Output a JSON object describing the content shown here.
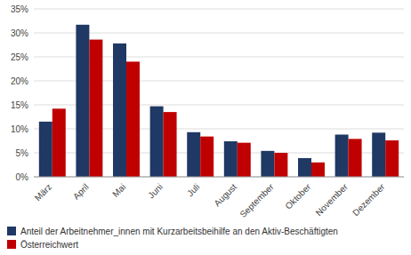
{
  "chart_data": {
    "type": "bar",
    "categories": [
      "März",
      "April",
      "Mai",
      "Juni",
      "Juli",
      "August",
      "September",
      "Oktober",
      "November",
      "Dezember"
    ],
    "series": [
      {
        "name": "Anteil der Arbeitnehmer_innen mit Kurzarbeitsbeihilfe an den Aktiv-Beschäftigten",
        "color": "#1F3864",
        "values": [
          11.5,
          31.7,
          27.8,
          14.7,
          9.3,
          7.4,
          5.4,
          3.9,
          8.8,
          9.2
        ]
      },
      {
        "name": "Österreichwert",
        "color": "#C00000",
        "values": [
          14.2,
          28.6,
          24.0,
          13.5,
          8.4,
          7.1,
          5.0,
          3.0,
          7.9,
          7.6
        ]
      }
    ],
    "ylim": [
      0,
      35
    ],
    "yticks": [
      {
        "value": 0,
        "label": "0%"
      },
      {
        "value": 5,
        "label": "5%"
      },
      {
        "value": 10,
        "label": "10%"
      },
      {
        "value": 15,
        "label": "15%"
      },
      {
        "value": 20,
        "label": "20%"
      },
      {
        "value": 25,
        "label": "25%"
      },
      {
        "value": 30,
        "label": "30%"
      },
      {
        "value": 35,
        "label": "35%"
      }
    ],
    "grid": true,
    "legend": "bottom"
  }
}
